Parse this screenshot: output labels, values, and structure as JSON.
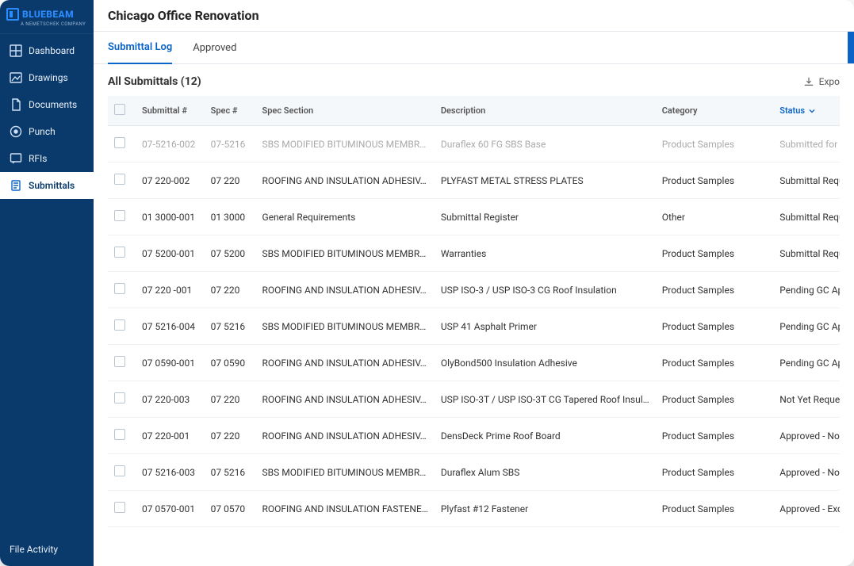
{
  "brand": {
    "name": "BLUEBEAM",
    "tagline": "A NEMETSCHEK COMPANY",
    "color": "#0a64c8"
  },
  "project_title": "Chicago Office Renovation",
  "sidebar": {
    "items": [
      {
        "label": "Dashboard",
        "icon": "dashboard"
      },
      {
        "label": "Drawings",
        "icon": "drawings"
      },
      {
        "label": "Documents",
        "icon": "documents"
      },
      {
        "label": "Punch",
        "icon": "punch"
      },
      {
        "label": "RFIs",
        "icon": "rfi"
      },
      {
        "label": "Submittals",
        "icon": "submittals",
        "active": true
      }
    ],
    "footer": "File Activity"
  },
  "tabs": [
    {
      "label": "Submittal Log",
      "active": true
    },
    {
      "label": "Approved"
    }
  ],
  "list_title": "All Submittals (12)",
  "export_label": "Expo",
  "columns": [
    "Submittal #",
    "Spec #",
    "Spec Section",
    "Description",
    "Category",
    "Status"
  ],
  "status_sort": "asc",
  "rows": [
    {
      "submittal": "07-5216-002",
      "spec": "07-5216",
      "section": "SBS MODIFIED BITUMINOUS MEMBR…",
      "desc": "Duraflex 60 FG SBS Base",
      "category": "Product Samples",
      "status": "Submitted for De…",
      "cut": true
    },
    {
      "submittal": "07 220-002",
      "spec": "07 220",
      "section": "ROOFING AND INSULATION ADHESIV…",
      "desc": "PLYFAST METAL STRESS PLATES",
      "category": "Product Samples",
      "status": "Submittal Reques…"
    },
    {
      "submittal": "01 3000-001",
      "spec": "01 3000",
      "section": "General Requirements",
      "desc": "Submittal Register",
      "category": "Other",
      "status": "Submittal Reques…"
    },
    {
      "submittal": "07 5200-001",
      "spec": "07 5200",
      "section": "SBS MODIFIED BITUMINOUS MEMBR…",
      "desc": "Warranties",
      "category": "Product Samples",
      "status": "Submittal Reques…"
    },
    {
      "submittal": "07 220 -001",
      "spec": "07 220",
      "section": "ROOFING AND INSULATION ADHESIV…",
      "desc": "USP ISO-3 / USP ISO-3 CG Roof Insulation",
      "category": "Product Samples",
      "status": "Pending GC Appro…"
    },
    {
      "submittal": "07 5216-004",
      "spec": "07 5216",
      "section": "SBS MODIFIED BITUMINOUS MEMBR…",
      "desc": "USP 41 Asphalt Primer",
      "category": "Product Samples",
      "status": "Pending GC Appro…"
    },
    {
      "submittal": "07 0590-001",
      "spec": "07 0590",
      "section": "ROOFING AND INSULATION ADHESIV…",
      "desc": "OlyBond500 Insulation Adhesive",
      "category": "Product Samples",
      "status": "Pending GC Appro…"
    },
    {
      "submittal": "07 220-003",
      "spec": "07 220",
      "section": "ROOFING AND INSULATION ADHESIV…",
      "desc": "USP ISO-3T / USP ISO-3T CG Tapered Roof Insul…",
      "category": "Product Samples",
      "status": "Not Yet Requeste…"
    },
    {
      "submittal": "07 220-001",
      "spec": "07 220",
      "section": "ROOFING AND INSULATION ADHESIV…",
      "desc": "DensDeck Prime Roof Board",
      "category": "Product Samples",
      "status": "Approved - No Ex…"
    },
    {
      "submittal": "07 5216-003",
      "spec": "07 5216",
      "section": "SBS MODIFIED BITUMINOUS MEMBR…",
      "desc": "Duraflex Alum SBS",
      "category": "Product Samples",
      "status": "Approved - No Ex…"
    },
    {
      "submittal": "07 0570-001",
      "spec": "07 0570",
      "section": "ROOFING AND INSULATION FASTENE…",
      "desc": "Plyfast #12 Fastener",
      "category": "Product Samples",
      "status": "Approved - Excep…"
    }
  ]
}
